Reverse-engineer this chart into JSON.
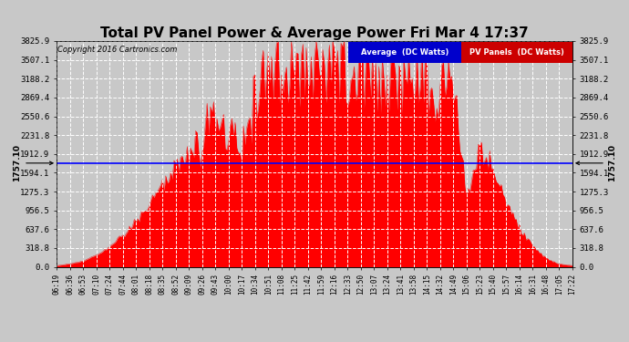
{
  "title": "Total PV Panel Power & Average Power Fri Mar 4 17:37",
  "copyright": "Copyright 2016 Cartronics.com",
  "yticks": [
    0.0,
    318.8,
    637.6,
    956.5,
    1275.3,
    1594.1,
    1912.9,
    2231.8,
    2550.6,
    2869.4,
    3188.2,
    3507.1,
    3825.9
  ],
  "ymax": 3825.9,
  "average_value": 1757.1,
  "average_label": "1757.10",
  "bg_color": "#c8c8c8",
  "plot_bg_color": "#c8c8c8",
  "grid_color": "#ffffff",
  "fill_color": "#ff0000",
  "avg_line_color": "#0000ff",
  "legend_avg_bg": "#0000cc",
  "legend_pv_bg": "#cc0000",
  "title_fontsize": 11,
  "xtick_labels": [
    "06:19",
    "06:36",
    "06:53",
    "07:10",
    "07:24",
    "07:44",
    "08:01",
    "08:18",
    "08:35",
    "08:52",
    "09:09",
    "09:26",
    "09:43",
    "10:00",
    "10:17",
    "10:34",
    "10:51",
    "11:08",
    "11:25",
    "11:42",
    "11:59",
    "12:16",
    "12:33",
    "12:50",
    "13:07",
    "13:24",
    "13:41",
    "13:58",
    "14:15",
    "14:32",
    "14:49",
    "15:06",
    "15:23",
    "15:40",
    "15:57",
    "16:14",
    "16:31",
    "16:48",
    "17:05",
    "17:22"
  ]
}
